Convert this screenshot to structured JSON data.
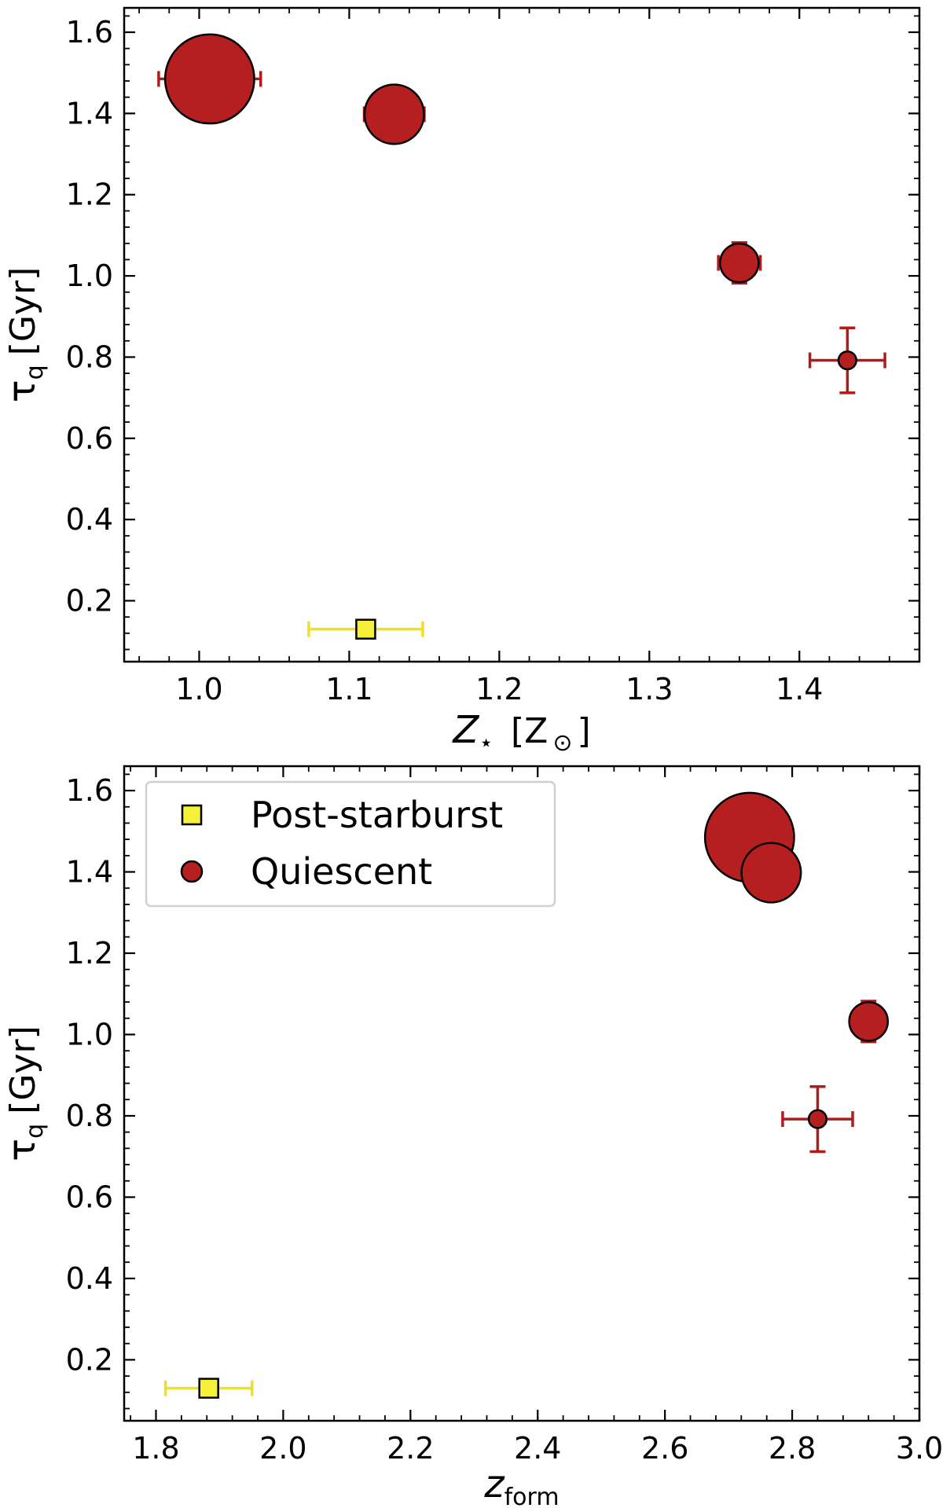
{
  "chart_data": [
    {
      "type": "scatter",
      "xlim": [
        0.95,
        1.48
      ],
      "ylim": [
        0.05,
        1.66
      ],
      "xticks": [
        1.0,
        1.1,
        1.2,
        1.3,
        1.4
      ],
      "yticks": [
        0.2,
        0.4,
        0.6,
        0.8,
        1.0,
        1.2,
        1.4,
        1.6
      ],
      "xtick_labels": [
        "1.0",
        "1.1",
        "1.2",
        "1.3",
        "1.4"
      ],
      "ytick_labels": [
        "0.2",
        "0.4",
        "0.6",
        "0.8",
        "1.0",
        "1.2",
        "1.4",
        "1.6"
      ],
      "xlabel": {
        "main": "Z",
        "sub": "⋆",
        "unit": "[Z",
        "unit_sub": "⊙",
        "close": "]"
      },
      "ylabel": {
        "main": "τ",
        "sub": "q",
        "rest": "[Gyr]"
      },
      "legend": null,
      "series": [
        {
          "name": "Post-starburst",
          "marker": "square",
          "color": "#f5f03a",
          "ecolor": "#f0e020",
          "points": [
            {
              "x": 1.111,
              "y": 0.13,
              "xerr": 0.038,
              "yerr": 0.0,
              "size": 1.0
            }
          ]
        },
        {
          "name": "Quiescent",
          "marker": "circle",
          "color": "#b51f1f",
          "ecolor": "#b01c1c",
          "points": [
            {
              "x": 1.007,
              "y": 1.485,
              "xerr": 0.034,
              "yerr": 0.105,
              "size": 3.0
            },
            {
              "x": 1.13,
              "y": 1.398,
              "xerr": 0.02,
              "yerr": 0.065,
              "size": 2.0
            },
            {
              "x": 1.36,
              "y": 1.032,
              "xerr": 0.014,
              "yerr": 0.05,
              "size": 1.3
            },
            {
              "x": 1.432,
              "y": 0.792,
              "xerr": 0.025,
              "yerr": 0.08,
              "size": 0.6
            }
          ]
        }
      ]
    },
    {
      "type": "scatter",
      "xlim": [
        1.75,
        3.0
      ],
      "ylim": [
        0.05,
        1.66
      ],
      "xticks": [
        1.8,
        2.0,
        2.2,
        2.4,
        2.6,
        2.8,
        3.0
      ],
      "yticks": [
        0.2,
        0.4,
        0.6,
        0.8,
        1.0,
        1.2,
        1.4,
        1.6
      ],
      "xtick_labels": [
        "1.8",
        "2.0",
        "2.2",
        "2.4",
        "2.6",
        "2.8",
        "3.0"
      ],
      "ytick_labels": [
        "0.2",
        "0.4",
        "0.6",
        "0.8",
        "1.0",
        "1.2",
        "1.4",
        "1.6"
      ],
      "xlabel": {
        "main": "z",
        "sub": "form"
      },
      "ylabel": {
        "main": "τ",
        "sub": "q",
        "rest": "[Gyr]"
      },
      "legend": {
        "placement": "top-left",
        "entries": [
          "Post-starburst",
          "Quiescent"
        ]
      },
      "series": [
        {
          "name": "Post-starburst",
          "marker": "square",
          "color": "#f5f03a",
          "ecolor": "#f0e020",
          "points": [
            {
              "x": 1.883,
              "y": 0.13,
              "xerr": 0.068,
              "yerr": 0.0,
              "size": 1.0
            }
          ]
        },
        {
          "name": "Quiescent",
          "marker": "circle",
          "color": "#b51f1f",
          "ecolor": "#b01c1c",
          "points": [
            {
              "x": 2.733,
              "y": 1.485,
              "xerr": 0.035,
              "yerr": 0.105,
              "size": 3.0
            },
            {
              "x": 2.767,
              "y": 1.398,
              "xerr": 0.028,
              "yerr": 0.065,
              "size": 2.0
            },
            {
              "x": 2.92,
              "y": 1.032,
              "xerr": 0.02,
              "yerr": 0.05,
              "size": 1.3
            },
            {
              "x": 2.84,
              "y": 0.792,
              "xerr": 0.055,
              "yerr": 0.08,
              "size": 0.6
            }
          ]
        }
      ]
    }
  ]
}
